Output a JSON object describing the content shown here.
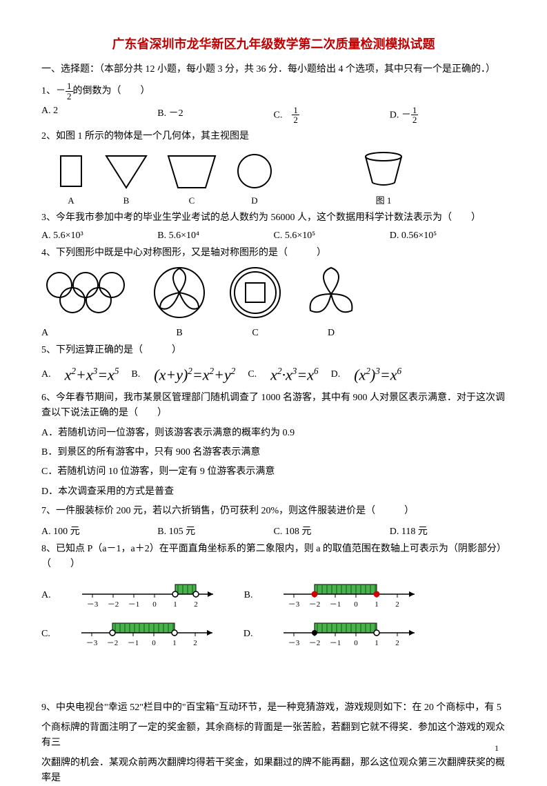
{
  "title": "广东省深圳市龙华新区九年级数学第二次质量检测模拟试题",
  "section1": "一、选择题：（本部分共 12 小题，每小题 3 分，共 36 分．每小题给出 4 个选项，其中只有一个是正确的．）",
  "q1": {
    "stem_pre": "1、－",
    "frac_num": "1",
    "frac_den": "2",
    "stem_post": "的倒数为（　　）",
    "A": "A. 2",
    "B": "B. －2",
    "C_pre": "C.　",
    "C_num": "1",
    "C_den": "2",
    "D_pre": "D. －",
    "D_num": "1",
    "D_den": "2"
  },
  "q2": {
    "stem": "2、如图 1 所示的物体是一个几何体，其主视图是",
    "labels": {
      "A": "A",
      "B": "B",
      "C": "C",
      "D": "D",
      "fig": "图 1"
    },
    "stroke": "#000000"
  },
  "q3": {
    "stem": "3、今年我市参加中考的毕业生学业考试的总人数约为 56000 人，这个数据用科学计数法表示为（　　）",
    "A": "A. 5.6×10³",
    "B": "B. 5.6×10⁴",
    "C": "C. 5.6×10⁵",
    "D": "D. 0.56×10⁵"
  },
  "q4": {
    "stem": "4、下列图形中既是中心对称图形，又是轴对称图形的是（　　　）",
    "labels": {
      "A": "A",
      "B": "B",
      "C": "C",
      "D": "D"
    },
    "stroke": "#000000"
  },
  "q5": {
    "stem": "5、下列运算正确的是（　　　）",
    "A": "x² + x³ = x⁵",
    "B": "(x+y)² = x² + y²",
    "C": "x² · x³ = x⁶",
    "D": "(x²)³ = x⁶"
  },
  "q6": {
    "stem": "6、今年春节期间，我市某景区管理部门随机调查了 1000 名游客，其中有 900 人对景区表示满意．对于这次调查以下说法正确的是（　　）",
    "A": "A．若随机访问一位游客，则该游客表示满意的概率约为 0.9",
    "B": "B．到景区的所有游客中，只有 900 名游客表示满意",
    "C": "C．若随机访问 10 位游客，则一定有 9 位游客表示满意",
    "D": "D．本次调查采用的方式是普查"
  },
  "q7": {
    "stem": "7、一件服装标价 200 元，若以六折销售，仍可获利 20%，则这件服装进价是（　　　）",
    "A": "A. 100 元",
    "B": "B. 105 元",
    "C": "C. 108 元",
    "D": "D. 118 元"
  },
  "q8": {
    "stem": "8、已知点 P（a－1，a＋2）在平面直角坐标系的第二象限内，则 a 的取值范围在数轴上可表示为（阴影部分）（　　）",
    "ticks": [
      "－3",
      "－2",
      "－1",
      "0",
      "1",
      "2"
    ],
    "shade_color": "#4caf50",
    "hatch_color": "#006400",
    "line_color": "#000000",
    "configs": {
      "A": {
        "shade_from": 1,
        "shade_to": 2,
        "left_open": true,
        "right_open": true,
        "red_dots": false
      },
      "B": {
        "shade_from": -2,
        "shade_to": 1,
        "left_open": false,
        "right_open": false,
        "red_dots": true
      },
      "C": {
        "shade_from": -2,
        "shade_to": 1,
        "left_open": true,
        "right_open": true,
        "red_dots": false
      },
      "D": {
        "shade_from": -2,
        "shade_to": 1,
        "left_open": false,
        "right_open": true,
        "red_dots": false
      }
    }
  },
  "q9": {
    "l1": "9、中央电视台\"幸运 52\"栏目中的\"百宝箱\"互动环节，是一种竞猜游戏，游戏规则如下：在 20 个商标中，有 5",
    "l2": "个商标牌的背面注明了一定的奖金额，其余商标的背面是一张苦脸，若翻到它就不得奖．参加这个游戏的观众有三",
    "l3": "次翻牌的机会．某观众前两次翻牌均得若干奖金，如果翻过的牌不能再翻，那么这位观众第三次翻牌获奖的概率是"
  },
  "page_number": "1"
}
